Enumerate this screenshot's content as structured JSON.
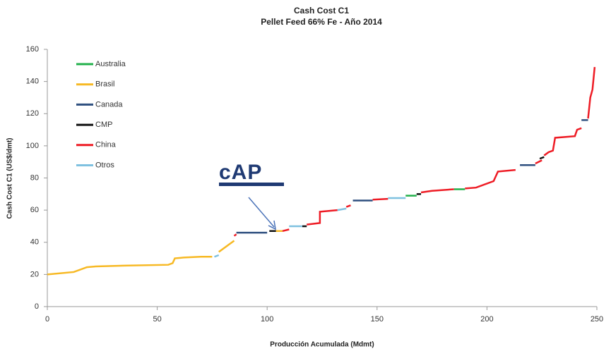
{
  "chart_data": {
    "type": "line",
    "title": "Cash Cost C1",
    "subtitle": "Pellet Feed 66% Fe - Año 2014",
    "x_label": "Producción Acumulada (Mdmt)",
    "y_label": "Cash Cost C1 (US$/dmt)",
    "annotations": [
      "cAP"
    ],
    "xlim": [
      0,
      250
    ],
    "xticks": [
      0,
      50,
      100,
      150,
      200,
      250
    ],
    "ylim": [
      0,
      160
    ],
    "yticks": [
      0,
      20,
      40,
      60,
      80,
      100,
      120,
      140,
      160
    ],
    "grid": false,
    "legend": "upper left",
    "series": [
      {
        "name": "Australia",
        "color": "#22b04b",
        "x": [
          163,
          168,
          null,
          185,
          190
        ],
        "values": [
          69,
          69,
          null,
          73,
          73
        ]
      },
      {
        "name": "Brasil",
        "color": "#f7b924",
        "x": [
          0,
          12,
          18,
          22,
          35,
          55,
          57,
          58,
          62,
          70,
          75,
          null,
          78,
          85,
          null,
          104,
          107
        ],
        "values": [
          20,
          21.5,
          24.5,
          25,
          25.5,
          26,
          27,
          30,
          30.5,
          31,
          31,
          null,
          34,
          41,
          null,
          47,
          47
        ]
      },
      {
        "name": "Canada",
        "color": "#2e4f7f",
        "x": [
          86,
          100,
          null,
          139,
          148,
          null,
          215,
          222,
          null,
          243,
          246
        ],
        "values": [
          46,
          46,
          null,
          66,
          66,
          null,
          88,
          88,
          null,
          116,
          116
        ]
      },
      {
        "name": "CMP",
        "color": "#111111",
        "x": [
          101,
          104,
          null,
          116,
          118,
          null,
          168,
          170,
          null,
          224,
          226
        ],
        "values": [
          47,
          47,
          null,
          50,
          50,
          null,
          70,
          70,
          null,
          92,
          93
        ]
      },
      {
        "name": "China",
        "color": "#ee1c25",
        "x": [
          85,
          86,
          null,
          107,
          110,
          null,
          118,
          124,
          124,
          132,
          null,
          136,
          138,
          null,
          148,
          155,
          null,
          170,
          175,
          185,
          null,
          190,
          195,
          203,
          205,
          213,
          null,
          222,
          225,
          null,
          226,
          228,
          230,
          231,
          240,
          241,
          243,
          null,
          246,
          247,
          248,
          249
        ],
        "values": [
          44,
          45,
          null,
          47,
          48,
          null,
          51,
          52,
          59,
          60,
          null,
          62,
          63,
          null,
          66.5,
          67,
          null,
          71,
          72,
          73,
          null,
          73.5,
          74,
          78,
          84,
          85,
          null,
          89,
          91,
          null,
          94,
          96,
          97,
          105,
          106,
          110,
          111,
          null,
          117,
          130,
          135,
          149
        ]
      },
      {
        "name": "Otros",
        "color": "#7fc1e0",
        "x": [
          76,
          78,
          null,
          110,
          116,
          null,
          132,
          136,
          null,
          155,
          163
        ],
        "values": [
          31,
          32,
          null,
          50,
          50,
          null,
          60,
          61,
          null,
          67.5,
          67.5
        ]
      }
    ]
  }
}
